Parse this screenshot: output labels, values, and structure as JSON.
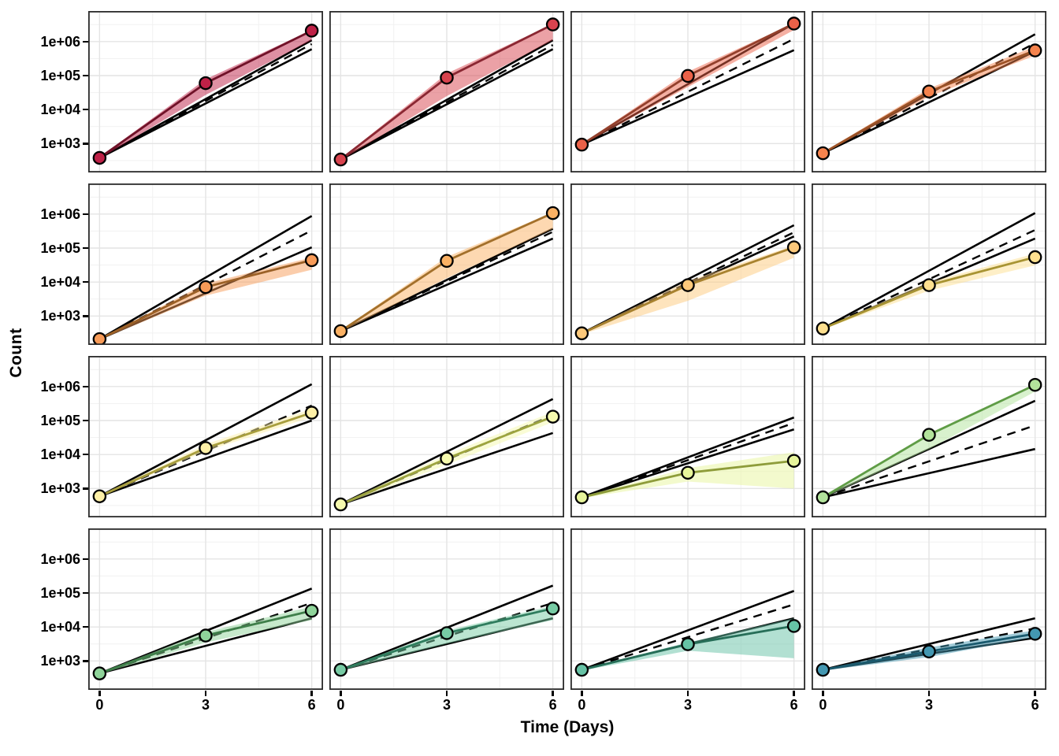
{
  "figure": {
    "y_axis_title": "Count",
    "x_axis_title": "Time (Days)",
    "y_tick_labels": [
      "1e+06",
      "1e+05",
      "1e+04",
      "1e+03"
    ],
    "y_tick_values": [
      1000000,
      100000,
      10000,
      1000
    ],
    "x_tick_labels": [
      "0",
      "3",
      "6"
    ],
    "x_tick_values": [
      0,
      3,
      6
    ]
  },
  "chart_data": {
    "type": "line",
    "title": "",
    "xlabel": "Time (Days)",
    "ylabel": "Count",
    "x": [
      0,
      3,
      6
    ],
    "layout": {
      "rows": 4,
      "cols": 4,
      "x_domain": [
        -0.32,
        6.32
      ],
      "y_log10_domain": [
        2.15,
        6.9
      ],
      "y_scale": "log10",
      "grid": true,
      "major_gridlines_log10": [
        3,
        4,
        5,
        6
      ],
      "minor_gridlines_log10": [
        2.5,
        3.5,
        4.5,
        5.5,
        6.5
      ],
      "major_vlines_t": [
        0,
        3,
        6
      ],
      "minor_vlines_t": [
        1.5,
        4.5
      ],
      "panel_border_color": "#2b2b2b",
      "major_grid_color": "#e4e4e4",
      "minor_grid_color": "#f1f1f1",
      "model_line_color": "#000000"
    },
    "panels": [
      {
        "row": 1,
        "col": 1,
        "point_color": "#BE2147",
        "line_color": "#701228",
        "counts": [
          380,
          60000,
          2100000
        ],
        "ribbon_high": [
          400,
          78000,
          2200000
        ],
        "ribbon_low": [
          360,
          27000,
          1100000
        ],
        "model_upper_end": 1100000,
        "model_dashed_end": 850000,
        "model_lower_end": 600000
      },
      {
        "row": 1,
        "col": 2,
        "point_color": "#D8434E",
        "line_color": "#8A2732",
        "counts": [
          340,
          87000,
          3200000
        ],
        "ribbon_high": [
          360,
          115000,
          3300000
        ],
        "ribbon_low": [
          320,
          25000,
          1100000
        ],
        "model_upper_end": 1100000,
        "model_dashed_end": 800000,
        "model_lower_end": 600000
      },
      {
        "row": 1,
        "col": 3,
        "point_color": "#EB6148",
        "line_color": "#93402C",
        "counts": [
          930,
          98000,
          3400000
        ],
        "ribbon_high": [
          960,
          130000,
          3500000
        ],
        "ribbon_low": [
          900,
          46000,
          2200000
        ],
        "model_upper_end": 3400000,
        "model_dashed_end": 1200000,
        "model_lower_end": 560000
      },
      {
        "row": 1,
        "col": 4,
        "point_color": "#F5834D",
        "line_color": "#9C5226",
        "counts": [
          520,
          34000,
          550000
        ],
        "ribbon_high": [
          550,
          42000,
          720000
        ],
        "ribbon_low": [
          500,
          24000,
          390000
        ],
        "model_upper_end": 1650000,
        "model_dashed_end": 900000,
        "model_lower_end": 520000
      },
      {
        "row": 2,
        "col": 1,
        "point_color": "#F89B58",
        "line_color": "#9C6127",
        "counts": [
          210,
          7100,
          44000
        ],
        "ribbon_high": [
          220,
          9000,
          53000
        ],
        "ribbon_low": [
          200,
          4000,
          23000
        ],
        "model_upper_end": 880000,
        "model_dashed_end": 330000,
        "model_lower_end": 105000
      },
      {
        "row": 2,
        "col": 2,
        "point_color": "#FBB164",
        "line_color": "#A3702B",
        "counts": [
          360,
          42000,
          1070000
        ],
        "ribbon_high": [
          380,
          55000,
          1120000
        ],
        "ribbon_low": [
          340,
          13000,
          370000
        ],
        "model_upper_end": 370000,
        "model_dashed_end": 300000,
        "model_lower_end": 190000
      },
      {
        "row": 2,
        "col": 3,
        "point_color": "#FDC97B",
        "line_color": "#A8822F",
        "counts": [
          310,
          8100,
          105000
        ],
        "ribbon_high": [
          330,
          10700,
          118000
        ],
        "ribbon_low": [
          290,
          2800,
          52000
        ],
        "model_upper_end": 470000,
        "model_dashed_end": 290000,
        "model_lower_end": 220000
      },
      {
        "row": 2,
        "col": 4,
        "point_color": "#FEE08F",
        "line_color": "#A89433",
        "counts": [
          430,
          8100,
          54000
        ],
        "ribbon_high": [
          450,
          10000,
          69000
        ],
        "ribbon_low": [
          410,
          5600,
          31000
        ],
        "model_upper_end": 1070000,
        "model_dashed_end": 340000,
        "model_lower_end": 190000
      },
      {
        "row": 3,
        "col": 1,
        "point_color": "#FEF0A7",
        "line_color": "#A89E3E",
        "counts": [
          590,
          15500,
          170000
        ],
        "ribbon_high": [
          620,
          20000,
          220000
        ],
        "ribbon_low": [
          560,
          12600,
          126000
        ],
        "model_upper_end": 1170000,
        "model_dashed_end": 275000,
        "model_lower_end": 100000
      },
      {
        "row": 3,
        "col": 2,
        "point_color": "#F6FAAE",
        "line_color": "#9DA43F",
        "counts": [
          340,
          7600,
          130000
        ],
        "ribbon_high": [
          360,
          10000,
          180000
        ],
        "ribbon_low": [
          320,
          5000,
          90000
        ],
        "model_upper_end": 430000,
        "model_dashed_end": 145000,
        "model_lower_end": 43000
      },
      {
        "row": 3,
        "col": 3,
        "point_color": "#E7F59B",
        "line_color": "#8E9C3A",
        "counts": [
          550,
          2900,
          6500
        ],
        "ribbon_high": [
          580,
          4000,
          11700
        ],
        "ribbon_low": [
          520,
          1600,
          1000
        ],
        "model_upper_end": 123000,
        "model_dashed_end": 85000,
        "model_lower_end": 55000
      },
      {
        "row": 3,
        "col": 4,
        "point_color": "#B2E39B",
        "line_color": "#5F9C46",
        "counts": [
          550,
          38000,
          1120000
        ],
        "ribbon_high": [
          580,
          42000,
          1150000
        ],
        "ribbon_low": [
          520,
          14500,
          710000
        ],
        "model_upper_end": 380000,
        "model_dashed_end": 72000,
        "model_lower_end": 14500
      },
      {
        "row": 4,
        "col": 1,
        "point_color": "#8FD49A",
        "line_color": "#3F7F4A",
        "counts": [
          430,
          5600,
          30000
        ],
        "ribbon_high": [
          450,
          7100,
          40000
        ],
        "ribbon_low": [
          410,
          3500,
          16000
        ],
        "model_upper_end": 135000,
        "model_dashed_end": 51000,
        "model_lower_end": 18000
      },
      {
        "row": 4,
        "col": 2,
        "point_color": "#77CBA4",
        "line_color": "#2F7D5E",
        "counts": [
          550,
          6600,
          35000
        ],
        "ribbon_high": [
          580,
          7900,
          42000
        ],
        "ribbon_low": [
          520,
          3200,
          16000
        ],
        "model_upper_end": 165000,
        "model_dashed_end": 51000,
        "model_lower_end": 18000
      },
      {
        "row": 4,
        "col": 3,
        "point_color": "#66C2A5",
        "line_color": "#266E58",
        "counts": [
          550,
          3100,
          10700
        ],
        "ribbon_high": [
          580,
          3500,
          18000
        ],
        "ribbon_low": [
          520,
          2000,
          1200
        ],
        "model_upper_end": 115000,
        "model_dashed_end": 46000,
        "model_lower_end": 18000
      },
      {
        "row": 4,
        "col": 4,
        "point_color": "#4397B1",
        "line_color": "#1A5A6E",
        "counts": [
          550,
          1900,
          6300
        ],
        "ribbon_high": [
          580,
          2500,
          8000
        ],
        "ribbon_low": [
          520,
          1300,
          5000
        ],
        "model_upper_end": 18000,
        "model_dashed_end": 9100,
        "model_lower_end": 4800
      }
    ]
  }
}
